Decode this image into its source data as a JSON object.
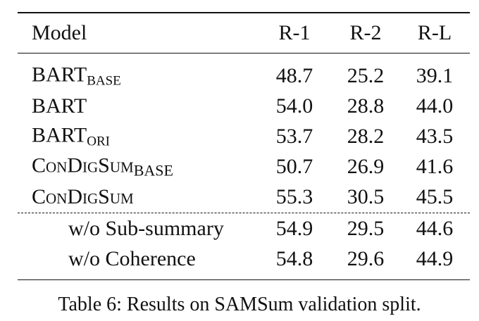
{
  "table": {
    "header": [
      "Model",
      "R-1",
      "R-2",
      "R-L"
    ],
    "rows": [
      {
        "model": {
          "name": "BART",
          "sub": "BASE"
        },
        "scores": [
          "48.7",
          "25.2",
          "39.1"
        ]
      },
      {
        "model": {
          "name": "BART"
        },
        "scores": [
          "54.0",
          "28.8",
          "44.0"
        ]
      },
      {
        "model": {
          "name": "BART",
          "sub": "ORI"
        },
        "scores": [
          "53.7",
          "28.2",
          "43.5"
        ]
      },
      {
        "model": {
          "name": "ConDigSum",
          "sub": "BASE"
        },
        "scores": [
          "50.7",
          "26.9",
          "41.6"
        ]
      },
      {
        "model": {
          "name": "ConDigSum"
        },
        "scores": [
          "55.3",
          "30.5",
          "45.5"
        ]
      },
      {
        "model": {
          "name": "w/o Sub-summary"
        },
        "scores": [
          "54.9",
          "29.5",
          "44.6"
        ]
      },
      {
        "model": {
          "name": "w/o Coherence"
        },
        "scores": [
          "54.8",
          "29.6",
          "44.9"
        ]
      }
    ]
  },
  "caption": "Table 6: Results on SAMSum validation split."
}
